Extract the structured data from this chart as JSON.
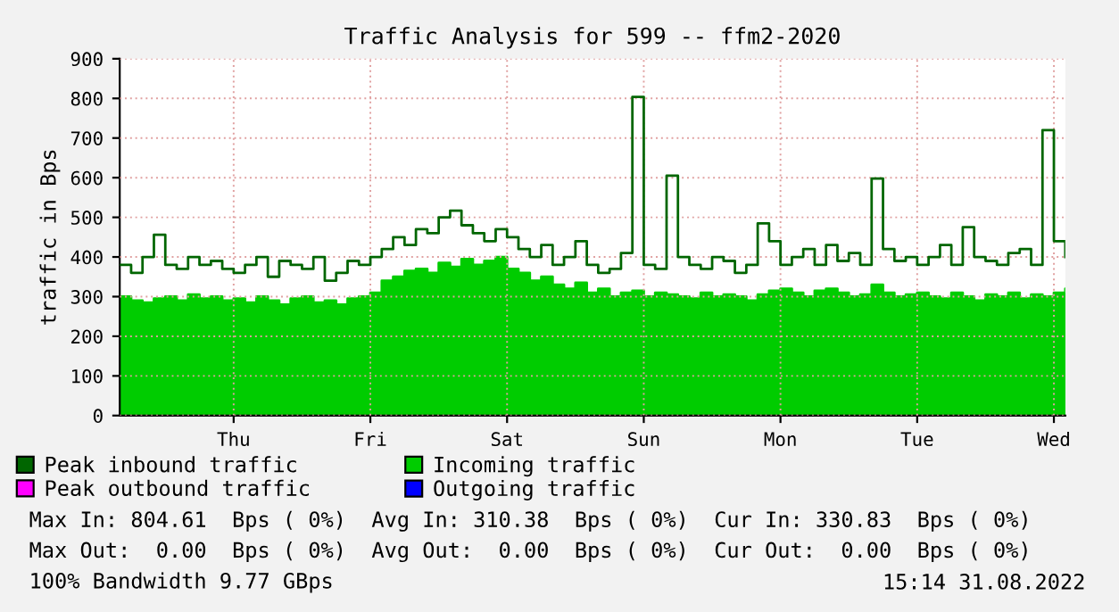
{
  "chart_data": {
    "type": "area",
    "title": "Traffic Analysis for 599 -- ffm2-2020",
    "ylabel": "traffic in Bps",
    "categories": [
      null,
      null,
      null,
      null,
      null,
      null,
      null,
      null,
      null,
      null,
      "Thu",
      null,
      null,
      null,
      null,
      null,
      null,
      null,
      null,
      null,
      null,
      null,
      "Fri",
      null,
      null,
      null,
      null,
      null,
      null,
      null,
      null,
      null,
      null,
      null,
      "Sat",
      null,
      null,
      null,
      null,
      null,
      null,
      null,
      null,
      null,
      null,
      null,
      "Sun",
      null,
      null,
      null,
      null,
      null,
      null,
      null,
      null,
      null,
      null,
      null,
      "Mon",
      null,
      null,
      null,
      null,
      null,
      null,
      null,
      null,
      null,
      null,
      null,
      "Tue",
      null,
      null,
      null,
      null,
      null,
      null,
      null,
      null,
      null,
      null,
      null,
      "Wed",
      null
    ],
    "series": [
      {
        "name": "Peak inbound traffic",
        "type": "step",
        "color": "#006600",
        "values": [
          380,
          360,
          400,
          456,
          380,
          370,
          400,
          380,
          390,
          370,
          360,
          380,
          400,
          350,
          390,
          380,
          370,
          400,
          340,
          360,
          390,
          380,
          400,
          420,
          450,
          430,
          470,
          460,
          500,
          517,
          480,
          460,
          440,
          470,
          450,
          420,
          400,
          430,
          380,
          400,
          440,
          380,
          360,
          370,
          410,
          804,
          380,
          370,
          605,
          400,
          380,
          370,
          400,
          390,
          360,
          380,
          485,
          440,
          380,
          400,
          420,
          380,
          430,
          390,
          410,
          380,
          598,
          420,
          390,
          400,
          380,
          400,
          430,
          380,
          475,
          400,
          390,
          380,
          410,
          420,
          380,
          720,
          440,
          400
        ]
      },
      {
        "name": "Incoming traffic",
        "color": "#00cc00",
        "values": [
          300,
          290,
          285,
          295,
          300,
          290,
          305,
          295,
          300,
          290,
          295,
          285,
          300,
          290,
          280,
          295,
          300,
          285,
          290,
          280,
          295,
          300,
          310,
          340,
          350,
          365,
          370,
          360,
          385,
          375,
          395,
          380,
          390,
          400,
          370,
          360,
          340,
          350,
          330,
          320,
          335,
          310,
          320,
          300,
          310,
          315,
          300,
          310,
          305,
          300,
          295,
          310,
          300,
          305,
          300,
          290,
          305,
          315,
          320,
          310,
          300,
          315,
          320,
          310,
          300,
          305,
          330,
          310,
          300,
          305,
          310,
          300,
          295,
          310,
          300,
          290,
          305,
          300,
          310,
          295,
          305,
          300,
          310,
          320
        ]
      },
      {
        "name": "Peak outbound traffic",
        "type": "step",
        "color": "#ff00ff",
        "values": [
          null,
          null,
          null,
          null,
          null,
          null,
          null,
          null,
          null,
          null,
          null,
          null,
          null,
          null,
          null,
          null,
          null,
          null,
          null,
          null,
          null,
          null,
          null,
          null,
          null,
          null,
          null,
          null,
          null,
          null,
          null,
          null,
          null,
          null,
          null,
          null,
          null,
          null,
          null,
          null,
          null,
          null,
          null,
          null,
          null,
          null,
          null,
          null,
          null,
          null,
          null,
          null,
          null,
          null,
          null,
          null,
          null,
          null,
          null,
          null,
          null,
          null,
          null,
          null,
          null,
          null,
          null,
          null,
          null,
          null,
          null,
          null,
          null,
          null,
          null,
          null,
          null,
          null,
          null,
          null,
          null,
          null,
          null,
          null
        ]
      },
      {
        "name": "Outgoing traffic",
        "color": "#0000ff",
        "values": [
          null,
          null,
          null,
          null,
          null,
          null,
          null,
          null,
          null,
          null,
          null,
          null,
          null,
          null,
          null,
          null,
          null,
          null,
          null,
          null,
          null,
          null,
          null,
          null,
          null,
          null,
          null,
          null,
          null,
          null,
          null,
          null,
          null,
          null,
          null,
          null,
          null,
          null,
          null,
          null,
          null,
          null,
          null,
          null,
          null,
          null,
          null,
          null,
          null,
          null,
          null,
          null,
          null,
          null,
          null,
          null,
          null,
          null,
          null,
          null,
          null,
          null,
          null,
          null,
          null,
          null,
          null,
          null,
          null,
          null,
          null,
          null,
          null,
          null,
          null,
          null,
          null,
          null,
          null,
          null,
          null,
          null,
          null,
          null
        ]
      }
    ],
    "ylim": [
      0,
      900
    ],
    "yticks": [
      0,
      100,
      200,
      300,
      400,
      500,
      600,
      700,
      800,
      900
    ],
    "grid": true,
    "legend": "bottom",
    "annotations": [
      "Max In: 804.61  Bps ( 0%)  Avg In: 310.38  Bps ( 0%)  Cur In: 330.83  Bps ( 0%)",
      "Max Out:  0.00  Bps ( 0%)  Avg Out:  0.00  Bps ( 0%)  Cur Out:  0.00  Bps ( 0%)",
      "100% Bandwidth 9.77 GBps",
      "15:14 31.08.2022"
    ]
  }
}
